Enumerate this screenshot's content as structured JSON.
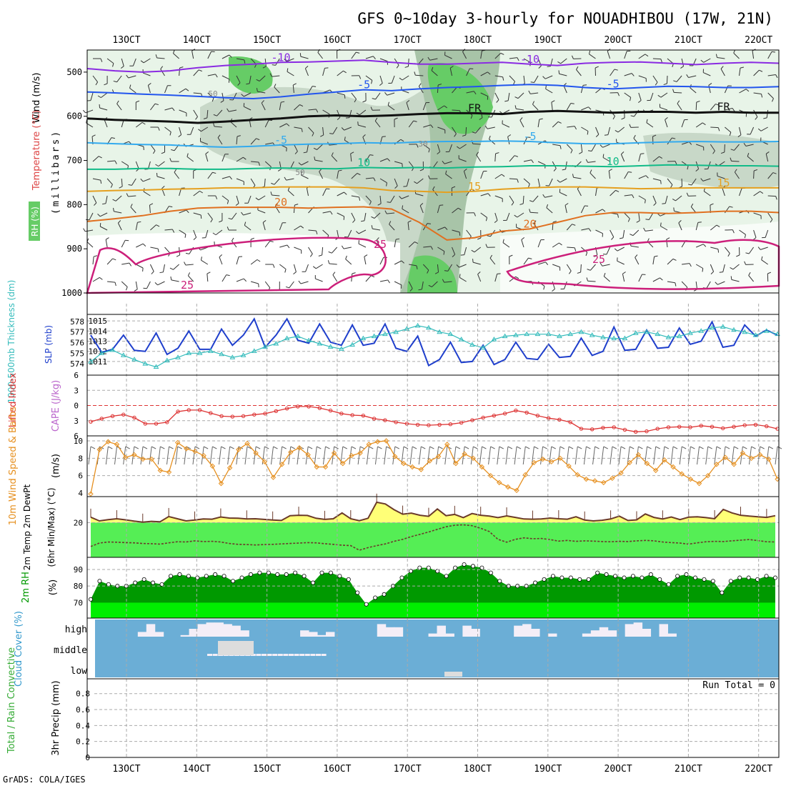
{
  "header": {
    "title": "GFS 0~10day 3-hourly for NOUADHIBOU (17W, 21N)",
    "footer": "GrADS: COLA/IGES"
  },
  "time_axis": {
    "ticks": [
      "13OCT",
      "14OCT",
      "15OCT",
      "16OCT",
      "17OCT",
      "18OCT",
      "19OCT",
      "20OCT",
      "21OCT",
      "22OCT"
    ]
  },
  "colors": {
    "rh_light": "#e8f4e8",
    "rh_mid": "#c8d8c8",
    "rh_dark": "#a8c4a8",
    "rh_wet": "#66cc66",
    "slp": "#1f3fcc",
    "thickness": "#33bbbb",
    "lifted": "#dd3333",
    "wind": "#e69020",
    "temp_fill": "#ffff77",
    "dew_fill": "#55ee55",
    "temp_line": "#6b3a2a",
    "rh2m": "#009900",
    "cloud_bg": "#6baed6",
    "cloud_white": "#f4eef7",
    "gray_panel_label": "#333333"
  },
  "chart_data": [
    {
      "type": "heatmap",
      "panel": "upper-air",
      "ylabel": "(millibars)",
      "side_labels": [
        "Wind (m/s)",
        "Temperature (°C)",
        "RH (%)"
      ],
      "yticks": [
        500,
        600,
        700,
        800,
        900,
        1000
      ],
      "ylim": [
        1000,
        450
      ],
      "isotherms": [
        {
          "label": "-10",
          "values_mb": [
            492,
            497,
            500,
            497,
            490,
            485,
            482,
            478,
            477,
            475,
            473,
            478,
            482,
            482,
            480,
            478,
            482,
            485,
            480,
            478,
            477,
            480,
            483,
            480,
            478,
            480
          ],
          "color": "#8a2be2"
        },
        {
          "label": "-5",
          "values_mb": [
            545,
            547,
            550,
            552,
            555,
            558,
            560,
            556,
            550,
            545,
            540,
            542,
            538,
            535,
            533,
            530,
            528,
            530,
            535,
            538,
            535,
            532,
            533,
            535,
            535,
            533
          ],
          "color": "#2255ee"
        },
        {
          "label": "FR",
          "values_mb": [
            605,
            608,
            610,
            612,
            615,
            612,
            608,
            605,
            600,
            598,
            600,
            598,
            595,
            593,
            593,
            595,
            590,
            588,
            590,
            592,
            590,
            590,
            592,
            590,
            592,
            592
          ],
          "color": "#111111"
        },
        {
          "label": "-5",
          "values_mb": [
            660,
            662,
            664,
            665,
            668,
            670,
            668,
            665,
            663,
            662,
            660,
            661,
            658,
            657,
            657,
            656,
            657,
            660,
            662,
            662,
            660,
            658,
            657,
            658,
            658,
            657
          ],
          "color": "#33aaee"
        },
        {
          "label": "10",
          "values_mb": [
            720,
            720,
            718,
            718,
            720,
            720,
            718,
            717,
            718,
            719,
            716,
            717,
            716,
            717,
            715,
            714,
            712,
            712,
            713,
            714,
            712,
            710,
            711,
            712,
            712,
            713
          ],
          "color": "#11bb88"
        },
        {
          "label": "15",
          "values_mb": [
            770,
            768,
            767,
            765,
            764,
            762,
            762,
            760,
            760,
            760,
            762,
            768,
            770,
            772,
            770,
            765,
            762,
            760,
            760,
            762,
            764,
            763,
            762,
            762,
            762,
            762
          ],
          "color": "#e5a020"
        },
        {
          "label": "20",
          "values_mb": [
            838,
            832,
            825,
            815,
            808,
            806,
            806,
            806,
            808,
            806,
            805,
            810,
            840,
            880,
            875,
            860,
            855,
            840,
            825,
            818,
            818,
            820,
            818,
            815,
            815,
            818
          ],
          "color": "#e07020"
        }
      ],
      "isotach_25": "closed warm contour near surface (25)",
      "contour_labels": [
        "-10",
        "-5",
        "FR",
        "-5",
        "10",
        "15",
        "20",
        "25",
        "30",
        "50"
      ]
    },
    {
      "type": "line",
      "panel": "slp-thickness",
      "ylabel_left": "1000-500mb Thickness (dm)",
      "ylabel_right": "SLP (mb)",
      "thickness_ticks": [
        574,
        575,
        576,
        577,
        578
      ],
      "slp_ticks": [
        1011,
        1012,
        1013,
        1014,
        1015
      ],
      "series": [
        {
          "name": "SLP",
          "values": [
            1013.6,
            1011.9,
            1012.2,
            1013.6,
            1012.1,
            1012.0,
            1013.8,
            1011.7,
            1012.3,
            1014.0,
            1012.2,
            1012.2,
            1014.2,
            1012.6,
            1013.6,
            1015.2,
            1012.4,
            1013.6,
            1015.2,
            1013.1,
            1012.8,
            1014.7,
            1012.9,
            1012.6,
            1014.6,
            1012.6,
            1012.8,
            1014.7,
            1012.3,
            1012.0,
            1013.5,
            1010.6,
            1011.2,
            1012.9,
            1010.9,
            1011.0,
            1012.6,
            1010.7,
            1011.2,
            1012.9,
            1011.3,
            1011.2,
            1012.7,
            1011.4,
            1011.5,
            1013.3,
            1011.6,
            1012.0,
            1014.4,
            1012.1,
            1012.2,
            1014.1,
            1012.3,
            1012.4,
            1014.3,
            1012.7,
            1013.0,
            1014.9,
            1012.4,
            1012.6,
            1014.6,
            1013.5,
            1014.1,
            1013.6
          ]
        },
        {
          "name": "Thickness",
          "values": [
            574.2,
            575.0,
            575.3,
            574.8,
            574.4,
            574.0,
            573.7,
            574.3,
            574.6,
            575.0,
            575.0,
            575.2,
            574.9,
            574.6,
            574.8,
            575.2,
            575.6,
            575.9,
            576.4,
            576.6,
            576.2,
            575.9,
            575.6,
            575.4,
            575.8,
            576.4,
            576.6,
            576.8,
            577.0,
            577.3,
            577.6,
            577.4,
            577.0,
            576.8,
            576.3,
            575.8,
            575.5,
            576.3,
            576.6,
            576.7,
            576.8,
            576.8,
            576.8,
            576.6,
            576.8,
            577.0,
            576.7,
            576.5,
            576.4,
            576.4,
            576.9,
            577.0,
            576.8,
            576.5,
            576.6,
            576.9,
            577.1,
            577.4,
            577.5,
            577.2,
            577.0,
            576.7,
            577.1,
            576.8
          ]
        }
      ]
    },
    {
      "type": "line",
      "panel": "lifted-index",
      "ylabel_left": "Lifted Index",
      "ylabel_right": "CAPE (J/kg)",
      "yticks": [
        -6,
        -3,
        0,
        3,
        6
      ],
      "series": [
        {
          "name": "Lifted Index",
          "values": [
            3.2,
            2.6,
            2.1,
            1.8,
            2.4,
            3.6,
            3.6,
            3.3,
            1.2,
            0.9,
            0.9,
            1.5,
            2.1,
            2.2,
            2.1,
            1.8,
            1.6,
            1.1,
            0.6,
            0.2,
            0.2,
            0.5,
            1.0,
            1.6,
            1.9,
            2.0,
            2.6,
            2.9,
            3.3,
            3.6,
            3.8,
            3.9,
            3.8,
            3.7,
            3.4,
            2.9,
            2.4,
            2.0,
            1.6,
            1.0,
            1.4,
            2.0,
            2.5,
            2.8,
            3.3,
            4.6,
            4.7,
            4.4,
            4.3,
            4.8,
            5.2,
            5.1,
            4.6,
            4.3,
            4.2,
            4.3,
            4.0,
            4.2,
            4.5,
            4.2,
            3.9,
            3.8,
            4.1,
            4.6
          ]
        }
      ]
    },
    {
      "type": "line",
      "panel": "wind10m",
      "ylabel_left": "10m Wind Speed & Barbs",
      "ylabel_right": "(m/s)",
      "yticks": [
        4,
        6,
        8,
        10
      ],
      "series": [
        {
          "name": "10m Wind Speed",
          "values": [
            3.9,
            9.0,
            9.9,
            9.6,
            8.1,
            8.4,
            7.9,
            7.9,
            6.6,
            6.4,
            9.8,
            9.1,
            8.8,
            8.3,
            7.1,
            5.1,
            6.9,
            9.0,
            9.7,
            8.6,
            7.6,
            5.8,
            7.3,
            8.7,
            9.2,
            8.4,
            7.0,
            7.0,
            8.6,
            7.4,
            8.3,
            8.6,
            9.6,
            9.9,
            10.0,
            8.2,
            7.4,
            7.0,
            6.7,
            7.7,
            8.2,
            9.6,
            7.4,
            8.5,
            8.0,
            7.0,
            6.0,
            5.2,
            4.7,
            4.3,
            6.1,
            7.5,
            7.9,
            7.6,
            8.0,
            7.1,
            6.1,
            5.6,
            5.4,
            5.2,
            5.7,
            6.3,
            7.5,
            8.4,
            7.4,
            6.6,
            7.8,
            7.0,
            6.2,
            5.6,
            5.1,
            6.0,
            7.3,
            8.1,
            7.3,
            8.6,
            8.0,
            8.4,
            7.9,
            5.6
          ]
        }
      ]
    },
    {
      "type": "area",
      "panel": "temp2m",
      "ylabel_left": "2m Temp 2m DewPt",
      "ylabel_right": "(6hr Min/Max) (°C)",
      "yticks": [
        20
      ],
      "series": [
        {
          "name": "2m Temp",
          "values": [
            22.5,
            20.8,
            21.4,
            21.8,
            21.3,
            20.7,
            20.2,
            20.6,
            20.4,
            22.8,
            21.8,
            20.8,
            21.2,
            21.7,
            21.6,
            22.6,
            22.1,
            22.0,
            21.7,
            21.8,
            21.5,
            21.2,
            21.0,
            23.2,
            23.4,
            23.3,
            22.0,
            21.5,
            21.8,
            24.5,
            21.8,
            20.9,
            22.0,
            29.4,
            28.6,
            26.0,
            23.9,
            24.4,
            23.4,
            22.9,
            26.3,
            23.2,
            23.8,
            22.3,
            24.2,
            23.4,
            23.0,
            22.3,
            23.1,
            22.4,
            21.7,
            21.6,
            21.7,
            22.1,
            21.8,
            21.6,
            22.7,
            21.2,
            20.8,
            21.1,
            21.7,
            23.0,
            21.0,
            21.3,
            24.0,
            22.4,
            21.7,
            22.6,
            21.4,
            22.5,
            22.7,
            22.3,
            21.8,
            26.1,
            24.5,
            23.4,
            23.0,
            22.7,
            22.4,
            23.2
          ]
        },
        {
          "name": "2m DewPt",
          "values": [
            9.0,
            10.6,
            11.1,
            11.0,
            10.8,
            10.7,
            10.4,
            10.3,
            10.1,
            10.7,
            11.2,
            11.1,
            11.6,
            11.3,
            11.4,
            11.1,
            10.4,
            10.0,
            9.9,
            9.7,
            9.9,
            10.0,
            10.2,
            10.4,
            10.6,
            10.8,
            10.7,
            10.3,
            10.0,
            9.6,
            9.4,
            7.3,
            8.5,
            9.4,
            10.2,
            11.4,
            12.3,
            13.6,
            14.6,
            15.7,
            16.9,
            18.1,
            18.8,
            19.0,
            18.6,
            17.4,
            15.9,
            12.3,
            11.0,
            12.3,
            13.0,
            12.6,
            12.7,
            12.2,
            11.5,
            11.8,
            11.4,
            11.6,
            11.5,
            11.3,
            11.2,
            11.4,
            11.3,
            11.6,
            11.8,
            11.6,
            11.1,
            10.8,
            10.6,
            10.1,
            10.7,
            11.2,
            11.4,
            11.3,
            11.6,
            11.9,
            12.2,
            11.7,
            11.2,
            11.1
          ]
        }
      ]
    },
    {
      "type": "area",
      "panel": "rh2m",
      "ylabel_left": "2m RH",
      "ylabel_right": "(%)",
      "yticks": [
        70,
        80,
        90
      ],
      "series": [
        {
          "name": "2m RH",
          "values": [
            72,
            83,
            81,
            80,
            80,
            82,
            84,
            82,
            81,
            86,
            87,
            86,
            85,
            86,
            87,
            86,
            83,
            85,
            87,
            88,
            88,
            87,
            87,
            88,
            86,
            82,
            88,
            88,
            86,
            84,
            76,
            69,
            73,
            75,
            80,
            85,
            89,
            91,
            91,
            89,
            86,
            91,
            93,
            92,
            91,
            88,
            83,
            80,
            80,
            80,
            82,
            84,
            86,
            85,
            85,
            84,
            84,
            88,
            87,
            86,
            85,
            86,
            85,
            87,
            84,
            81,
            86,
            87,
            85,
            84,
            83,
            76,
            83,
            85,
            85,
            84,
            86,
            85
          ]
        }
      ]
    },
    {
      "type": "heatmap",
      "panel": "cloud-cover",
      "ylabel": "Cloud Cover (%)",
      "levels": [
        "high",
        "middle",
        "low"
      ],
      "high_clear_fraction": [
        0,
        0,
        0,
        0,
        0,
        0.3,
        0.8,
        0.3,
        0,
        0,
        0.1,
        0.5,
        0.8,
        0.9,
        0.9,
        0.8,
        0.7,
        0.4,
        0,
        0,
        0,
        0,
        0,
        0,
        0.4,
        0.3,
        0.1,
        0.3,
        0,
        0,
        0,
        0,
        0,
        0.8,
        0.6,
        0.6,
        0,
        0,
        0,
        0.2,
        0.7,
        0.2,
        0,
        0.7,
        0.5,
        0,
        0,
        0,
        0,
        0.7,
        0.8,
        0.5,
        0,
        0.2,
        0,
        0,
        0,
        0.2,
        0.4,
        0.6,
        0.4,
        0,
        0.8,
        0.9,
        0.5,
        0,
        0.8,
        0.2,
        0,
        0,
        0,
        0,
        0,
        0,
        0,
        0,
        0,
        0,
        0,
        0
      ]
    },
    {
      "type": "bar",
      "panel": "precip",
      "ylabel_left": "Total / Rain Convective",
      "ylabel_right": "3hr Precip (mm)",
      "yticks": [
        0,
        0.2,
        0.4,
        0.6,
        0.8
      ],
      "annotation": "Run Total = 0",
      "values": []
    }
  ]
}
